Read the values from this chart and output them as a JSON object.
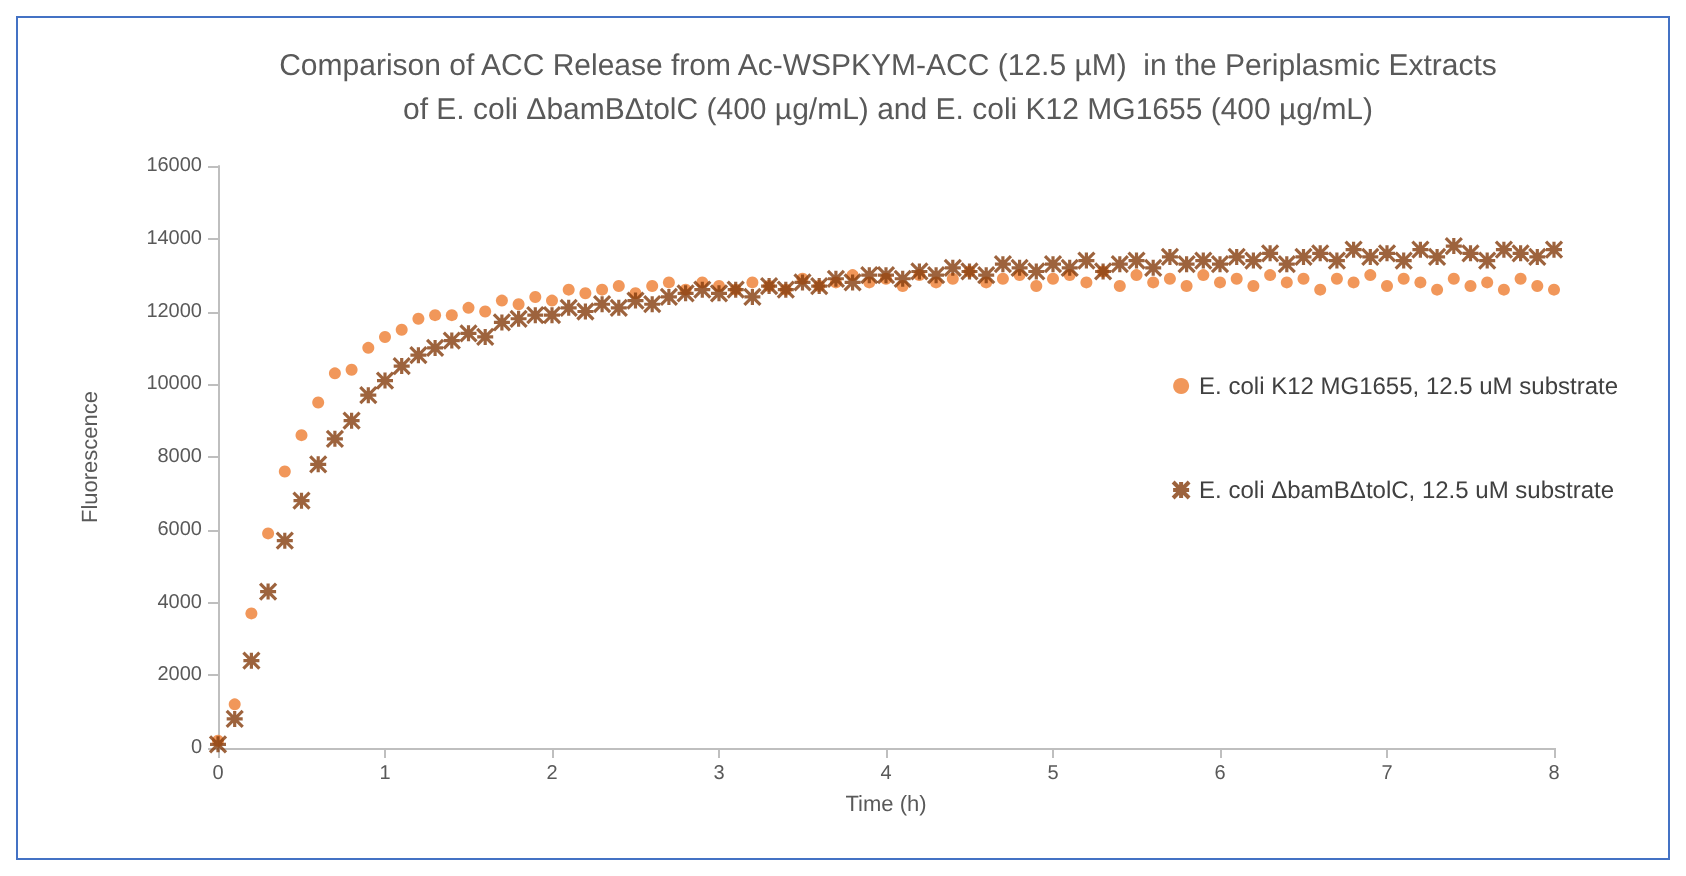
{
  "chart_data": {
    "type": "scatter",
    "title": "Comparison of ACC Release from Ac-WSPKYM-ACC (12.5 µM)  in the Periplasmic Extracts\nof E. coli ΔbamBΔtolC (400 µg/mL) and E. coli K12 MG1655 (400 µg/mL)",
    "xlabel": "Time (h)",
    "ylabel": "Fluorescence",
    "x": [
      0,
      0.1,
      0.2,
      0.3,
      0.4,
      0.5,
      0.6,
      0.7,
      0.8,
      0.9,
      1,
      1.1,
      1.2,
      1.3,
      1.4,
      1.5,
      1.6,
      1.7,
      1.8,
      1.9,
      2,
      2.1,
      2.2,
      2.3,
      2.4,
      2.5,
      2.6,
      2.7,
      2.8,
      2.9,
      3,
      3.1,
      3.2,
      3.3,
      3.4,
      3.5,
      3.6,
      3.7,
      3.8,
      3.9,
      4,
      4.1,
      4.2,
      4.3,
      4.4,
      4.5,
      4.6,
      4.7,
      4.8,
      4.9,
      5,
      5.1,
      5.2,
      5.3,
      5.4,
      5.5,
      5.6,
      5.7,
      5.8,
      5.9,
      6,
      6.1,
      6.2,
      6.3,
      6.4,
      6.5,
      6.6,
      6.7,
      6.8,
      6.9,
      7,
      7.1,
      7.2,
      7.3,
      7.4,
      7.5,
      7.6,
      7.7,
      7.8,
      7.9,
      8
    ],
    "series": [
      {
        "name": "E. coli K12 MG1655, 12.5 uM substrate",
        "color": "#ed7d31",
        "marker": "circle",
        "values": [
          200,
          1200,
          3700,
          5900,
          7600,
          8600,
          9500,
          10300,
          10400,
          11000,
          11300,
          11500,
          11800,
          11900,
          11900,
          12100,
          12000,
          12300,
          12200,
          12400,
          12300,
          12600,
          12500,
          12600,
          12700,
          12500,
          12700,
          12800,
          12600,
          12800,
          12700,
          12600,
          12800,
          12700,
          12600,
          12900,
          12700,
          12800,
          13000,
          12800,
          12900,
          12700,
          13000,
          12800,
          12900,
          13100,
          12800,
          12900,
          13000,
          12700,
          12900,
          13000,
          12800,
          13100,
          12700,
          13000,
          12800,
          12900,
          12700,
          13000,
          12800,
          12900,
          12700,
          13000,
          12800,
          12900,
          12600,
          12900,
          12800,
          13000,
          12700,
          12900,
          12800,
          12600,
          12900,
          12700,
          12800,
          12600,
          12900,
          12700,
          12600
        ]
      },
      {
        "name": "E. coli ΔbamBΔtolC, 12.5 uM substrate",
        "color": "#843c0c",
        "marker": "cross",
        "values": [
          100,
          800,
          2400,
          4300,
          5700,
          6800,
          7800,
          8500,
          9000,
          9700,
          10100,
          10500,
          10800,
          11000,
          11200,
          11400,
          11300,
          11700,
          11800,
          11900,
          11900,
          12100,
          12000,
          12200,
          12100,
          12300,
          12200,
          12400,
          12500,
          12600,
          12500,
          12600,
          12400,
          12700,
          12600,
          12800,
          12700,
          12900,
          12800,
          13000,
          13000,
          12900,
          13100,
          13000,
          13200,
          13100,
          13000,
          13300,
          13200,
          13100,
          13300,
          13200,
          13400,
          13100,
          13300,
          13400,
          13200,
          13500,
          13300,
          13400,
          13300,
          13500,
          13400,
          13600,
          13300,
          13500,
          13600,
          13400,
          13700,
          13500,
          13600,
          13400,
          13700,
          13500,
          13800,
          13600,
          13400,
          13700,
          13600,
          13500,
          13700
        ]
      }
    ],
    "xlim": [
      0,
      8
    ],
    "xticks": [
      0,
      1,
      2,
      3,
      4,
      5,
      6,
      7,
      8
    ],
    "ylim": [
      0,
      16000
    ],
    "yticks": [
      0,
      2000,
      4000,
      6000,
      8000,
      10000,
      12000,
      14000,
      16000
    ],
    "grid": false,
    "legend": "right"
  }
}
